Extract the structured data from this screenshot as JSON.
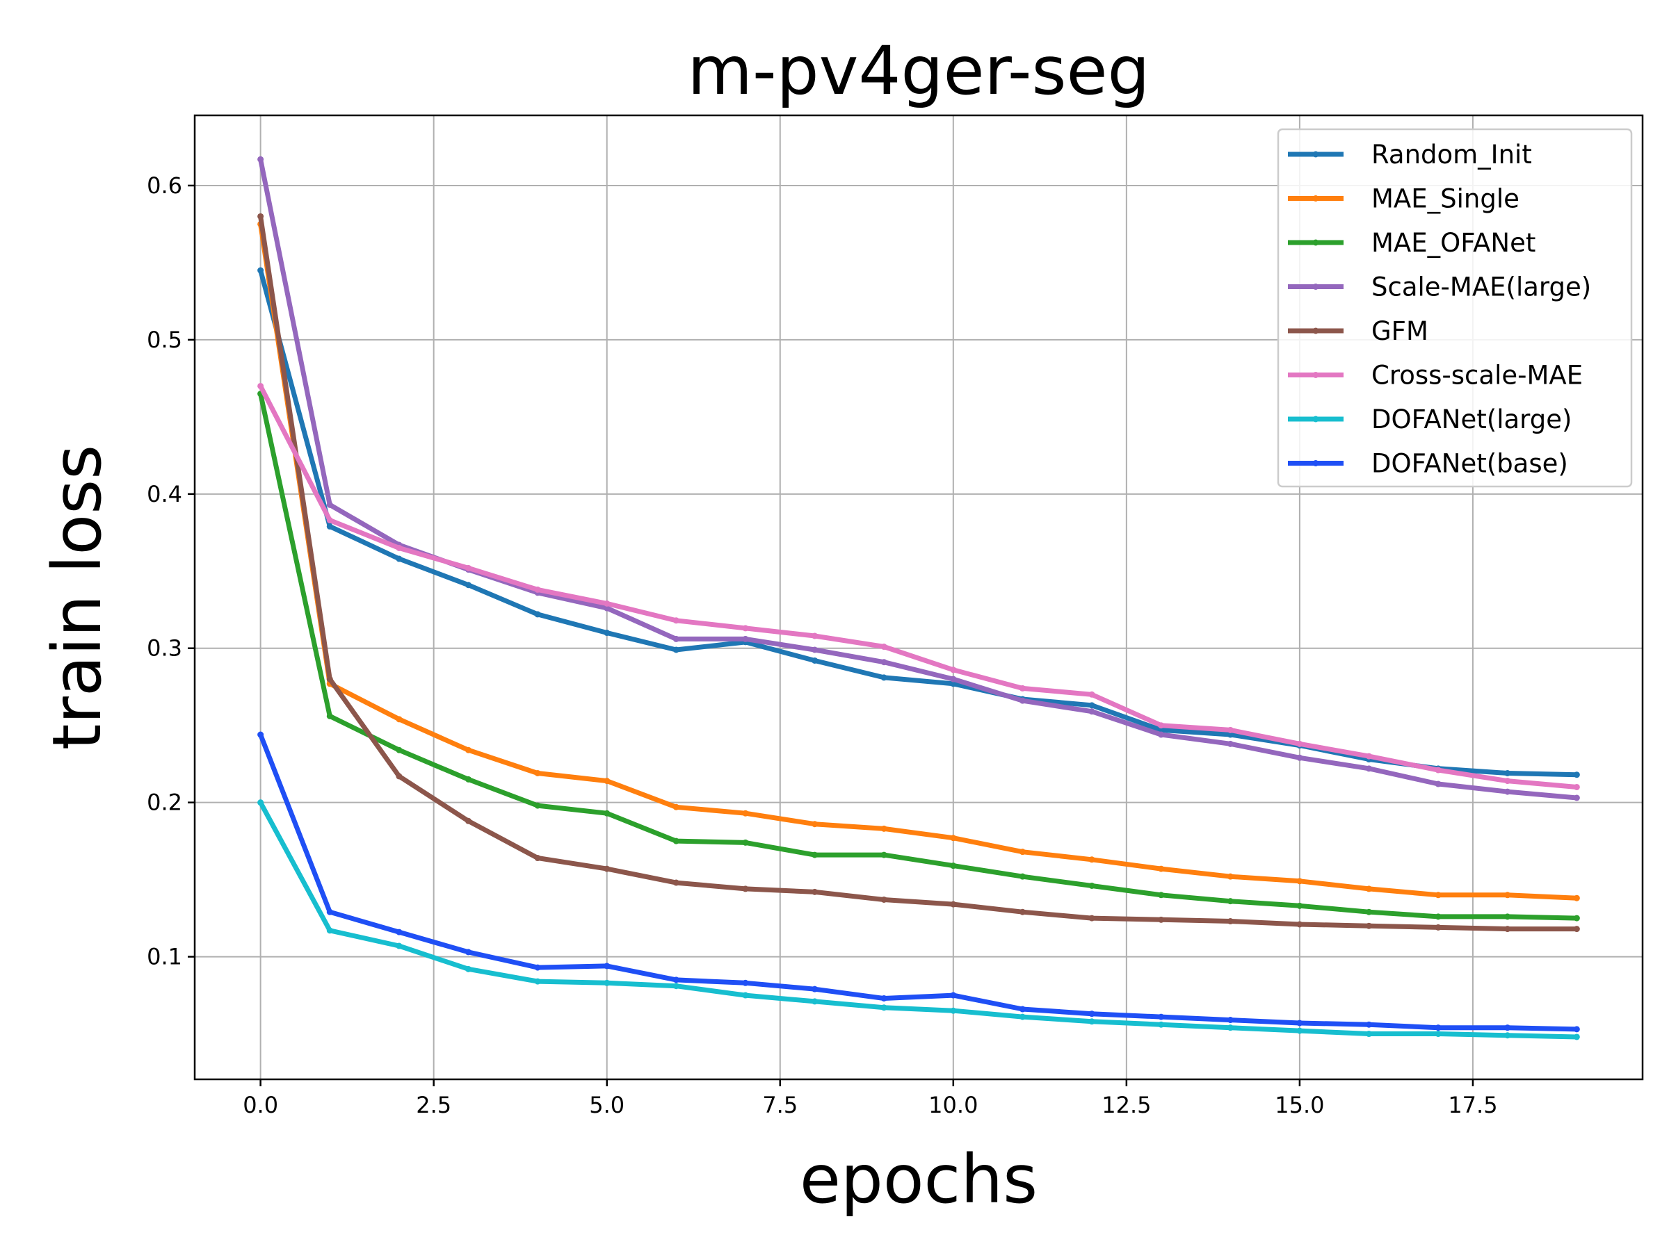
{
  "chart_data": {
    "type": "line",
    "title": "m-pv4ger-seg",
    "xlabel": "epochs",
    "ylabel": "train loss",
    "xlim": [
      -0.95,
      19.95
    ],
    "ylim": [
      0.0205,
      0.6455
    ],
    "xticks": [
      0.0,
      2.5,
      5.0,
      7.5,
      10.0,
      12.5,
      15.0,
      17.5
    ],
    "xtick_labels": [
      "0.0",
      "2.5",
      "5.0",
      "7.5",
      "10.0",
      "12.5",
      "15.0",
      "17.5"
    ],
    "yticks": [
      0.1,
      0.2,
      0.3,
      0.4,
      0.5,
      0.6
    ],
    "ytick_labels": [
      "0.1",
      "0.2",
      "0.3",
      "0.4",
      "0.5",
      "0.6"
    ],
    "grid": true,
    "legend_position": "top-right",
    "x": [
      0,
      1,
      2,
      3,
      4,
      5,
      6,
      7,
      8,
      9,
      10,
      11,
      12,
      13,
      14,
      15,
      16,
      17,
      18,
      19
    ],
    "series": [
      {
        "name": "Random_Init",
        "color": "#1f77b4",
        "values": [
          0.545,
          0.379,
          0.358,
          0.341,
          0.322,
          0.31,
          0.299,
          0.304,
          0.292,
          0.281,
          0.277,
          0.267,
          0.263,
          0.247,
          0.244,
          0.237,
          0.228,
          0.222,
          0.219,
          0.218
        ]
      },
      {
        "name": "MAE_Single",
        "color": "#ff7f0e",
        "values": [
          0.575,
          0.277,
          0.254,
          0.234,
          0.219,
          0.214,
          0.197,
          0.193,
          0.186,
          0.183,
          0.177,
          0.168,
          0.163,
          0.157,
          0.152,
          0.149,
          0.144,
          0.14,
          0.14,
          0.138
        ]
      },
      {
        "name": "MAE_OFANet",
        "color": "#2ca02c",
        "values": [
          0.465,
          0.256,
          0.234,
          0.215,
          0.198,
          0.193,
          0.175,
          0.174,
          0.166,
          0.166,
          0.159,
          0.152,
          0.146,
          0.14,
          0.136,
          0.133,
          0.129,
          0.126,
          0.126,
          0.125
        ]
      },
      {
        "name": "Scale-MAE(large)",
        "color": "#9467bd",
        "values": [
          0.617,
          0.393,
          0.367,
          0.351,
          0.336,
          0.326,
          0.306,
          0.306,
          0.299,
          0.291,
          0.28,
          0.266,
          0.259,
          0.244,
          0.238,
          0.229,
          0.222,
          0.212,
          0.207,
          0.203
        ]
      },
      {
        "name": "GFM",
        "color": "#8c564b",
        "values": [
          0.58,
          0.28,
          0.217,
          0.188,
          0.164,
          0.157,
          0.148,
          0.144,
          0.142,
          0.137,
          0.134,
          0.129,
          0.125,
          0.124,
          0.123,
          0.121,
          0.12,
          0.119,
          0.118,
          0.118
        ]
      },
      {
        "name": "Cross-scale-MAE",
        "color": "#e377c2",
        "values": [
          0.47,
          0.383,
          0.365,
          0.352,
          0.338,
          0.329,
          0.318,
          0.313,
          0.308,
          0.301,
          0.286,
          0.274,
          0.27,
          0.25,
          0.247,
          0.238,
          0.23,
          0.221,
          0.214,
          0.21
        ]
      },
      {
        "name": "DOFANet(large)",
        "color": "#17becf",
        "values": [
          0.2,
          0.117,
          0.107,
          0.092,
          0.084,
          0.083,
          0.081,
          0.075,
          0.071,
          0.067,
          0.065,
          0.061,
          0.058,
          0.056,
          0.054,
          0.052,
          0.05,
          0.05,
          0.049,
          0.048
        ]
      },
      {
        "name": "DOFANet(base)",
        "color": "#1f4ff5",
        "values": [
          0.244,
          0.129,
          0.116,
          0.103,
          0.093,
          0.094,
          0.085,
          0.083,
          0.079,
          0.073,
          0.075,
          0.066,
          0.063,
          0.061,
          0.059,
          0.057,
          0.056,
          0.054,
          0.054,
          0.053
        ]
      }
    ]
  }
}
